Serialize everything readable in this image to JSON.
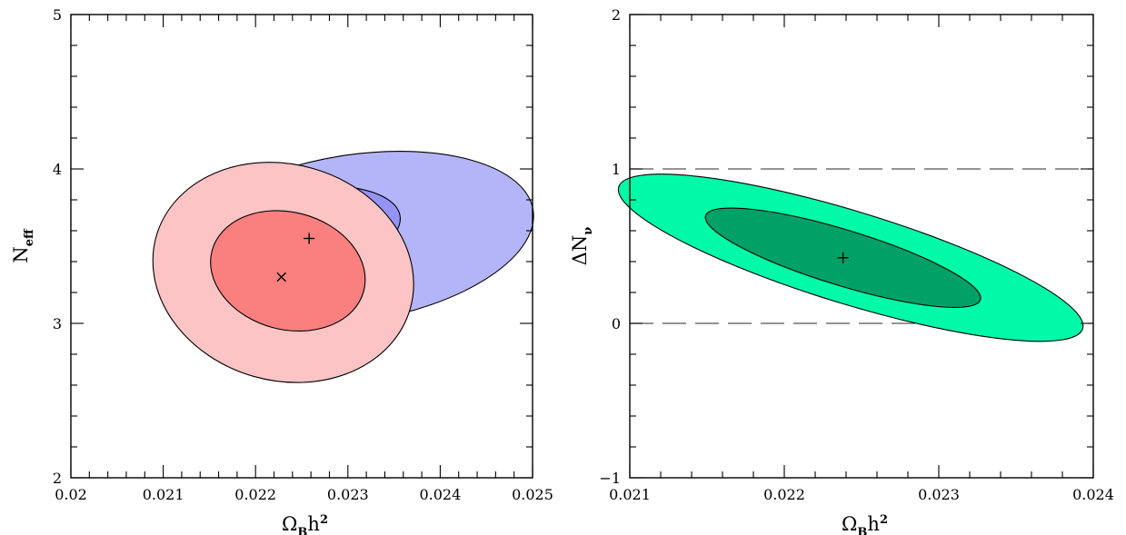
{
  "chart_data": [
    {
      "type": "contour",
      "xlabel": "Ω",
      "xlabel_sub": "B",
      "xlabel_rest": "h",
      "xlabel_sup": "2",
      "ylabel": "N",
      "ylabel_sub": "eff",
      "xlim": [
        0.02,
        0.025
      ],
      "ylim": [
        2,
        5
      ],
      "x_ticks": [
        0.02,
        0.021,
        0.022,
        0.023,
        0.024,
        0.025
      ],
      "x_tick_labels": [
        "0.02",
        "0.021",
        "0.022",
        "0.023",
        "0.024",
        "0.025"
      ],
      "y_ticks": [
        2,
        3,
        4,
        5
      ],
      "y_tick_labels": [
        "2",
        "3",
        "4",
        "5"
      ],
      "x_minor_step": 0.0002,
      "y_minor_step": 0.2,
      "colors": {
        "blue_outer": "#b4b4f8",
        "blue_inner": "#9494f8",
        "red_outer": "#fcc4c4",
        "red_inner": "#fa8080"
      },
      "contours": [
        {
          "id": "blue-outer",
          "color": "blue_outer",
          "cx": 0.02306,
          "cy": 3.55,
          "rx": 0.00197,
          "ry": 0.54,
          "angle_deg": -9
        },
        {
          "id": "blue-inner",
          "color": "blue_inner",
          "cx": 0.02234,
          "cy": 3.58,
          "rx": 0.00124,
          "ry": 0.295,
          "angle_deg": -9
        },
        {
          "id": "red-outer",
          "color": "red_outer",
          "cx": 0.0223,
          "cy": 3.33,
          "rx": 0.00143,
          "ry": 0.7,
          "angle_deg": 16
        },
        {
          "id": "red-inner",
          "color": "red_inner",
          "cx": 0.02235,
          "cy": 3.34,
          "rx": 0.00085,
          "ry": 0.38,
          "angle_deg": 15
        }
      ],
      "markers": [
        {
          "id": "plus-marker",
          "symbol": "+",
          "x": 0.02258,
          "y": 3.55
        },
        {
          "id": "cross-marker",
          "symbol": "x",
          "x": 0.02228,
          "y": 3.3
        }
      ]
    },
    {
      "type": "contour",
      "xlabel": "Ω",
      "xlabel_sub": "B",
      "xlabel_rest": "h",
      "xlabel_sup": "2",
      "ylabel": "ΔN",
      "ylabel_sub": "ν",
      "xlim": [
        0.021,
        0.024
      ],
      "ylim": [
        -1,
        2
      ],
      "x_ticks": [
        0.021,
        0.022,
        0.023,
        0.024
      ],
      "x_tick_labels": [
        "0.021",
        "0.022",
        "0.023",
        "0.024"
      ],
      "y_ticks": [
        -1,
        0,
        1,
        2
      ],
      "y_tick_labels": [
        "−1",
        "0",
        "1",
        "2"
      ],
      "x_minor_step": 0.0002,
      "y_minor_step": 0.2,
      "colors": {
        "green_outer": "#00faa8",
        "green_inner": "#00a066"
      },
      "dashed_lines": [
        0,
        1
      ],
      "contours": [
        {
          "id": "green-outer",
          "color": "green_outer",
          "cx": 0.02243,
          "cy": 0.425,
          "rx": 0.00157,
          "ry": 0.3,
          "angle_deg": 17
        },
        {
          "id": "green-inner",
          "color": "green_inner",
          "cx": 0.02238,
          "cy": 0.425,
          "rx": 0.00093,
          "ry": 0.18,
          "angle_deg": 17
        }
      ],
      "markers": [
        {
          "id": "plus-marker",
          "symbol": "+",
          "x": 0.02238,
          "y": 0.425
        }
      ]
    }
  ]
}
